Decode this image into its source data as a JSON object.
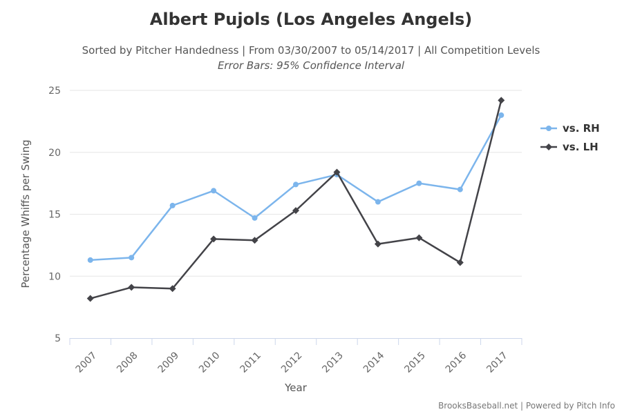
{
  "chart_data": {
    "type": "line",
    "title": "Albert Pujols (Los Angeles Angels)",
    "subtitle": "Sorted by Pitcher Handedness | From 03/30/2007 to 05/14/2017 | All Competition Levels",
    "subtitle2": "Error Bars: 95% Confidence Interval",
    "xlabel": "Year",
    "ylabel": "Percentage Whiffs per Swing",
    "categories": [
      "2007",
      "2008",
      "2009",
      "2010",
      "2011",
      "2012",
      "2013",
      "2014",
      "2015",
      "2016",
      "2017"
    ],
    "ylim": [
      5,
      25
    ],
    "yticks": [
      "5",
      "10",
      "15",
      "20",
      "25"
    ],
    "grid": true,
    "legend_position": "right",
    "series": [
      {
        "name": "vs. RH",
        "color": "#7cb5ec",
        "marker": "circle",
        "values": [
          11.3,
          11.5,
          15.7,
          16.9,
          14.7,
          17.4,
          18.2,
          16.0,
          17.5,
          17.0,
          23.0
        ]
      },
      {
        "name": "vs. LH",
        "color": "#434348",
        "marker": "diamond",
        "values": [
          8.2,
          9.1,
          9.0,
          13.0,
          12.9,
          15.3,
          18.4,
          12.6,
          13.1,
          11.1,
          24.2
        ]
      }
    ],
    "credit": "BrooksBaseball.net | Powered by Pitch Info"
  }
}
